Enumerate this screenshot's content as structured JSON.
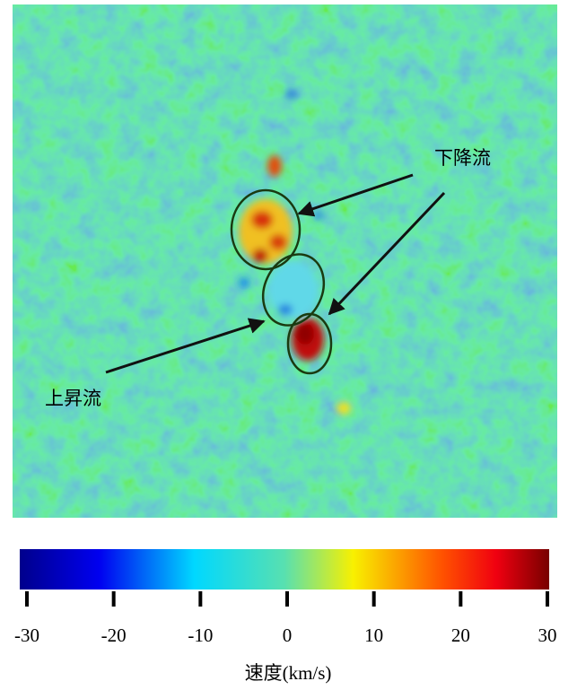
{
  "annotations": {
    "downflow": "下降流",
    "upflow": "上昇流"
  },
  "colorbar": {
    "label": "速度(km/s)",
    "lim": [
      -30,
      30
    ],
    "ticks": [
      -30,
      -20,
      -10,
      0,
      10,
      20,
      30
    ]
  }
}
